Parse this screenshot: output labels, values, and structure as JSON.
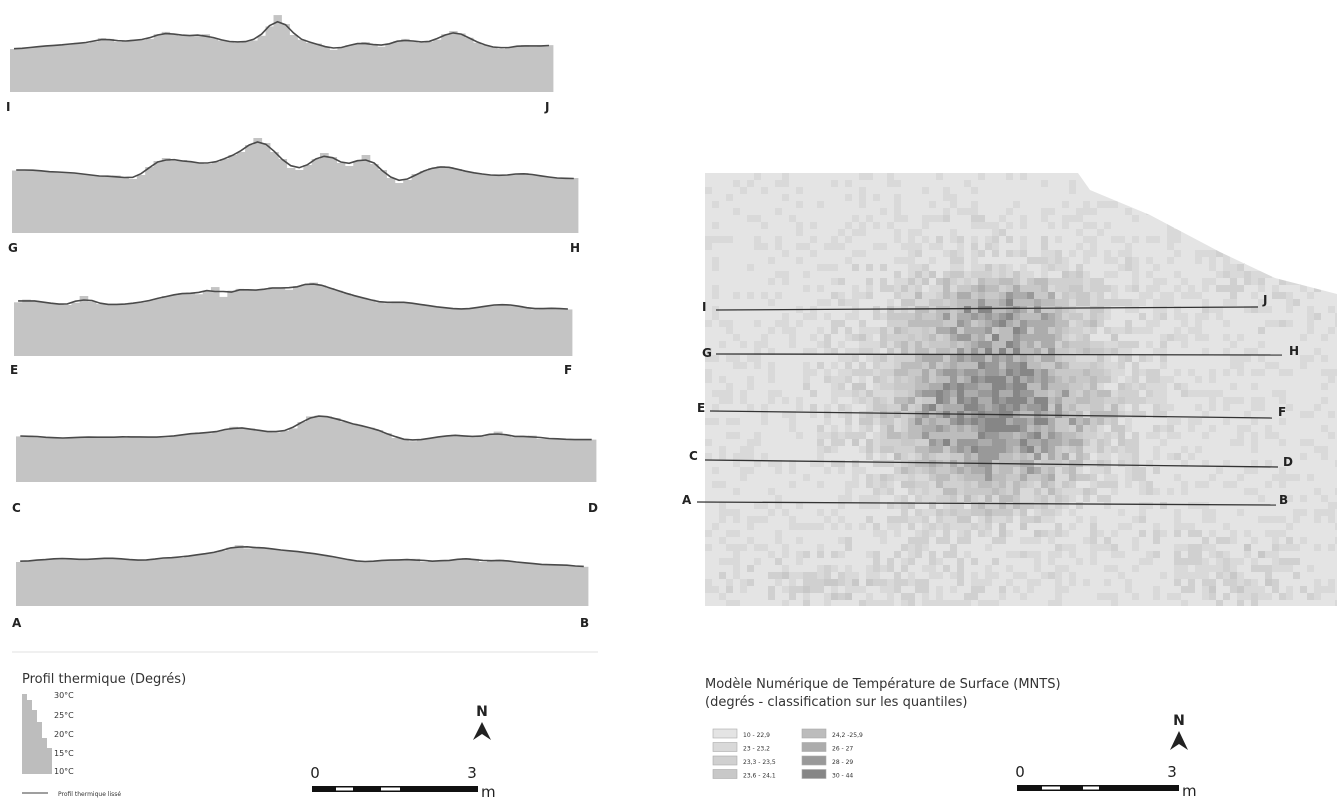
{
  "profiles": [
    {
      "id": "IJ",
      "start": "I",
      "end": "J",
      "values": [
        21.0,
        21.2,
        21.4,
        21.6,
        21.8,
        22.0,
        22.0,
        22.3,
        22.6,
        22.5,
        22.9,
        23.8,
        23.6,
        22.8,
        23.0,
        23.4,
        23.3,
        23.6,
        24.8,
        25.4,
        24.7,
        24.4,
        24.6,
        24.3,
        24.8,
        23.8,
        23.2,
        23.0,
        22.6,
        22.9,
        23.2,
        24.4,
        26.8,
        29.7,
        27.4,
        24.6,
        23.4,
        22.6,
        22.4,
        21.6,
        20.8,
        21.4,
        22.0,
        22.4,
        22.8,
        22.0,
        21.6,
        22.4,
        23.0,
        23.6,
        23.0,
        22.6,
        22.9,
        23.4,
        24.8,
        25.6,
        25.0,
        23.9,
        22.6,
        22.0,
        21.6,
        21.0,
        21.4,
        21.8,
        22.0,
        21.6,
        21.8,
        22.0
      ]
    },
    {
      "id": "GH",
      "start": "G",
      "end": "H",
      "values": [
        22.5,
        22.7,
        22.6,
        22.4,
        22.3,
        22.1,
        22.2,
        22.0,
        21.8,
        21.6,
        21.4,
        21.2,
        21.5,
        21.0,
        20.8,
        21.6,
        23.2,
        24.4,
        25.0,
        24.4,
        24.6,
        24.2,
        24.0,
        23.8,
        24.2,
        24.8,
        25.6,
        26.2,
        27.6,
        29.0,
        28.0,
        26.2,
        24.8,
        23.0,
        22.6,
        23.6,
        24.8,
        26.0,
        25.2,
        24.0,
        23.4,
        24.4,
        25.6,
        23.8,
        22.6,
        21.0,
        20.0,
        20.6,
        21.8,
        22.4,
        23.0,
        23.4,
        23.2,
        22.8,
        22.3,
        22.0,
        21.8,
        21.6,
        21.4,
        21.6,
        21.8,
        22.0,
        21.7,
        21.4,
        21.2,
        21.0,
        20.8,
        21.0
      ]
    },
    {
      "id": "EF",
      "start": "E",
      "end": "F",
      "values": [
        22.0,
        22.6,
        22.3,
        22.0,
        21.8,
        21.6,
        21.4,
        21.9,
        23.4,
        22.2,
        21.6,
        21.6,
        21.4,
        21.6,
        21.8,
        22.0,
        22.4,
        22.8,
        23.4,
        23.6,
        24.0,
        24.2,
        23.8,
        24.6,
        25.4,
        23.2,
        24.6,
        25.0,
        24.8,
        24.6,
        24.8,
        25.4,
        25.4,
        24.8,
        25.6,
        26.0,
        26.4,
        25.8,
        25.2,
        24.6,
        24.0,
        23.4,
        23.0,
        22.6,
        22.0,
        21.8,
        22.2,
        22.0,
        21.8,
        21.6,
        21.2,
        21.0,
        20.8,
        20.6,
        20.4,
        20.6,
        20.8,
        21.2,
        21.4,
        21.6,
        21.4,
        21.2,
        20.8,
        20.4,
        20.6,
        20.8,
        20.6,
        20.4
      ]
    },
    {
      "id": "CD",
      "start": "C",
      "end": "D",
      "values": [
        21.4,
        21.6,
        21.3,
        21.2,
        21.0,
        21.0,
        21.0,
        21.2,
        21.3,
        21.2,
        21.1,
        21.3,
        21.2,
        21.4,
        21.2,
        21.2,
        21.3,
        21.2,
        21.6,
        21.8,
        22.0,
        22.4,
        22.2,
        22.6,
        23.0,
        23.8,
        23.4,
        23.4,
        22.8,
        22.6,
        22.4,
        22.8,
        23.4,
        25.0,
        26.4,
        26.6,
        26.4,
        26.0,
        25.0,
        24.6,
        24.0,
        23.6,
        23.0,
        22.2,
        21.0,
        20.8,
        20.2,
        20.6,
        21.0,
        21.2,
        21.6,
        21.8,
        21.6,
        21.2,
        21.4,
        21.8,
        22.6,
        21.6,
        21.2,
        21.4,
        21.6,
        20.8,
        21.0,
        20.8,
        20.6,
        20.6,
        20.6,
        20.6
      ]
    },
    {
      "id": "AB",
      "start": "A",
      "end": "B",
      "values": [
        21.0,
        21.4,
        21.4,
        21.6,
        21.8,
        22.0,
        21.8,
        21.6,
        21.6,
        21.8,
        22.0,
        22.0,
        21.8,
        21.6,
        21.4,
        21.4,
        21.8,
        22.0,
        22.2,
        22.0,
        22.6,
        22.8,
        23.0,
        23.4,
        23.8,
        24.6,
        25.2,
        24.4,
        24.8,
        24.6,
        24.2,
        24.0,
        23.8,
        23.6,
        23.4,
        23.0,
        22.8,
        22.4,
        22.0,
        21.6,
        21.2,
        21.0,
        21.2,
        21.4,
        21.6,
        21.4,
        21.6,
        21.8,
        21.0,
        21.4,
        21.2,
        21.4,
        21.6,
        22.0,
        21.8,
        21.0,
        21.4,
        21.6,
        21.2,
        21.0,
        20.8,
        20.6,
        20.4,
        20.2,
        20.4,
        20.2,
        20.0,
        19.8
      ]
    }
  ],
  "map": {
    "profile_lines": [
      {
        "start": "I",
        "end": "J"
      },
      {
        "start": "G",
        "end": "H"
      },
      {
        "start": "E",
        "end": "F"
      },
      {
        "start": "C",
        "end": "D"
      },
      {
        "start": "A",
        "end": "B"
      }
    ],
    "class_colors": [
      "#e4e4e4",
      "#d9d9d9",
      "#d0d0d0",
      "#c8c8c8",
      "#bcbcbc",
      "#acacac",
      "#999999",
      "#868686"
    ]
  },
  "legend_left": {
    "title": "Profil thermique (Degrés)",
    "ticks": [
      "30°C",
      "25°C",
      "20°C",
      "15°C",
      "10°C"
    ],
    "line_label": "Profil thermique lissé"
  },
  "legend_right": {
    "title_line1": "Modèle Numérique de Température de Surface (MNTS)",
    "title_line2": "(degrés - classification sur les quantiles)",
    "classes": [
      {
        "label": "10 - 22,9",
        "color": "#e4e4e4"
      },
      {
        "label": "23 - 23,2",
        "color": "#d9d9d9"
      },
      {
        "label": "23,3 - 23,5",
        "color": "#d0d0d0"
      },
      {
        "label": "23,6 - 24,1",
        "color": "#c8c8c8"
      },
      {
        "label": "24,2 -25,9",
        "color": "#bcbcbc"
      },
      {
        "label": "26 - 27",
        "color": "#acacac"
      },
      {
        "label": "28 - 29",
        "color": "#999999"
      },
      {
        "label": "30 - 44",
        "color": "#868686"
      }
    ]
  },
  "north_arrow": {
    "label": "N"
  },
  "scale_bar": {
    "start": "0",
    "end": "3",
    "unit": "m"
  }
}
